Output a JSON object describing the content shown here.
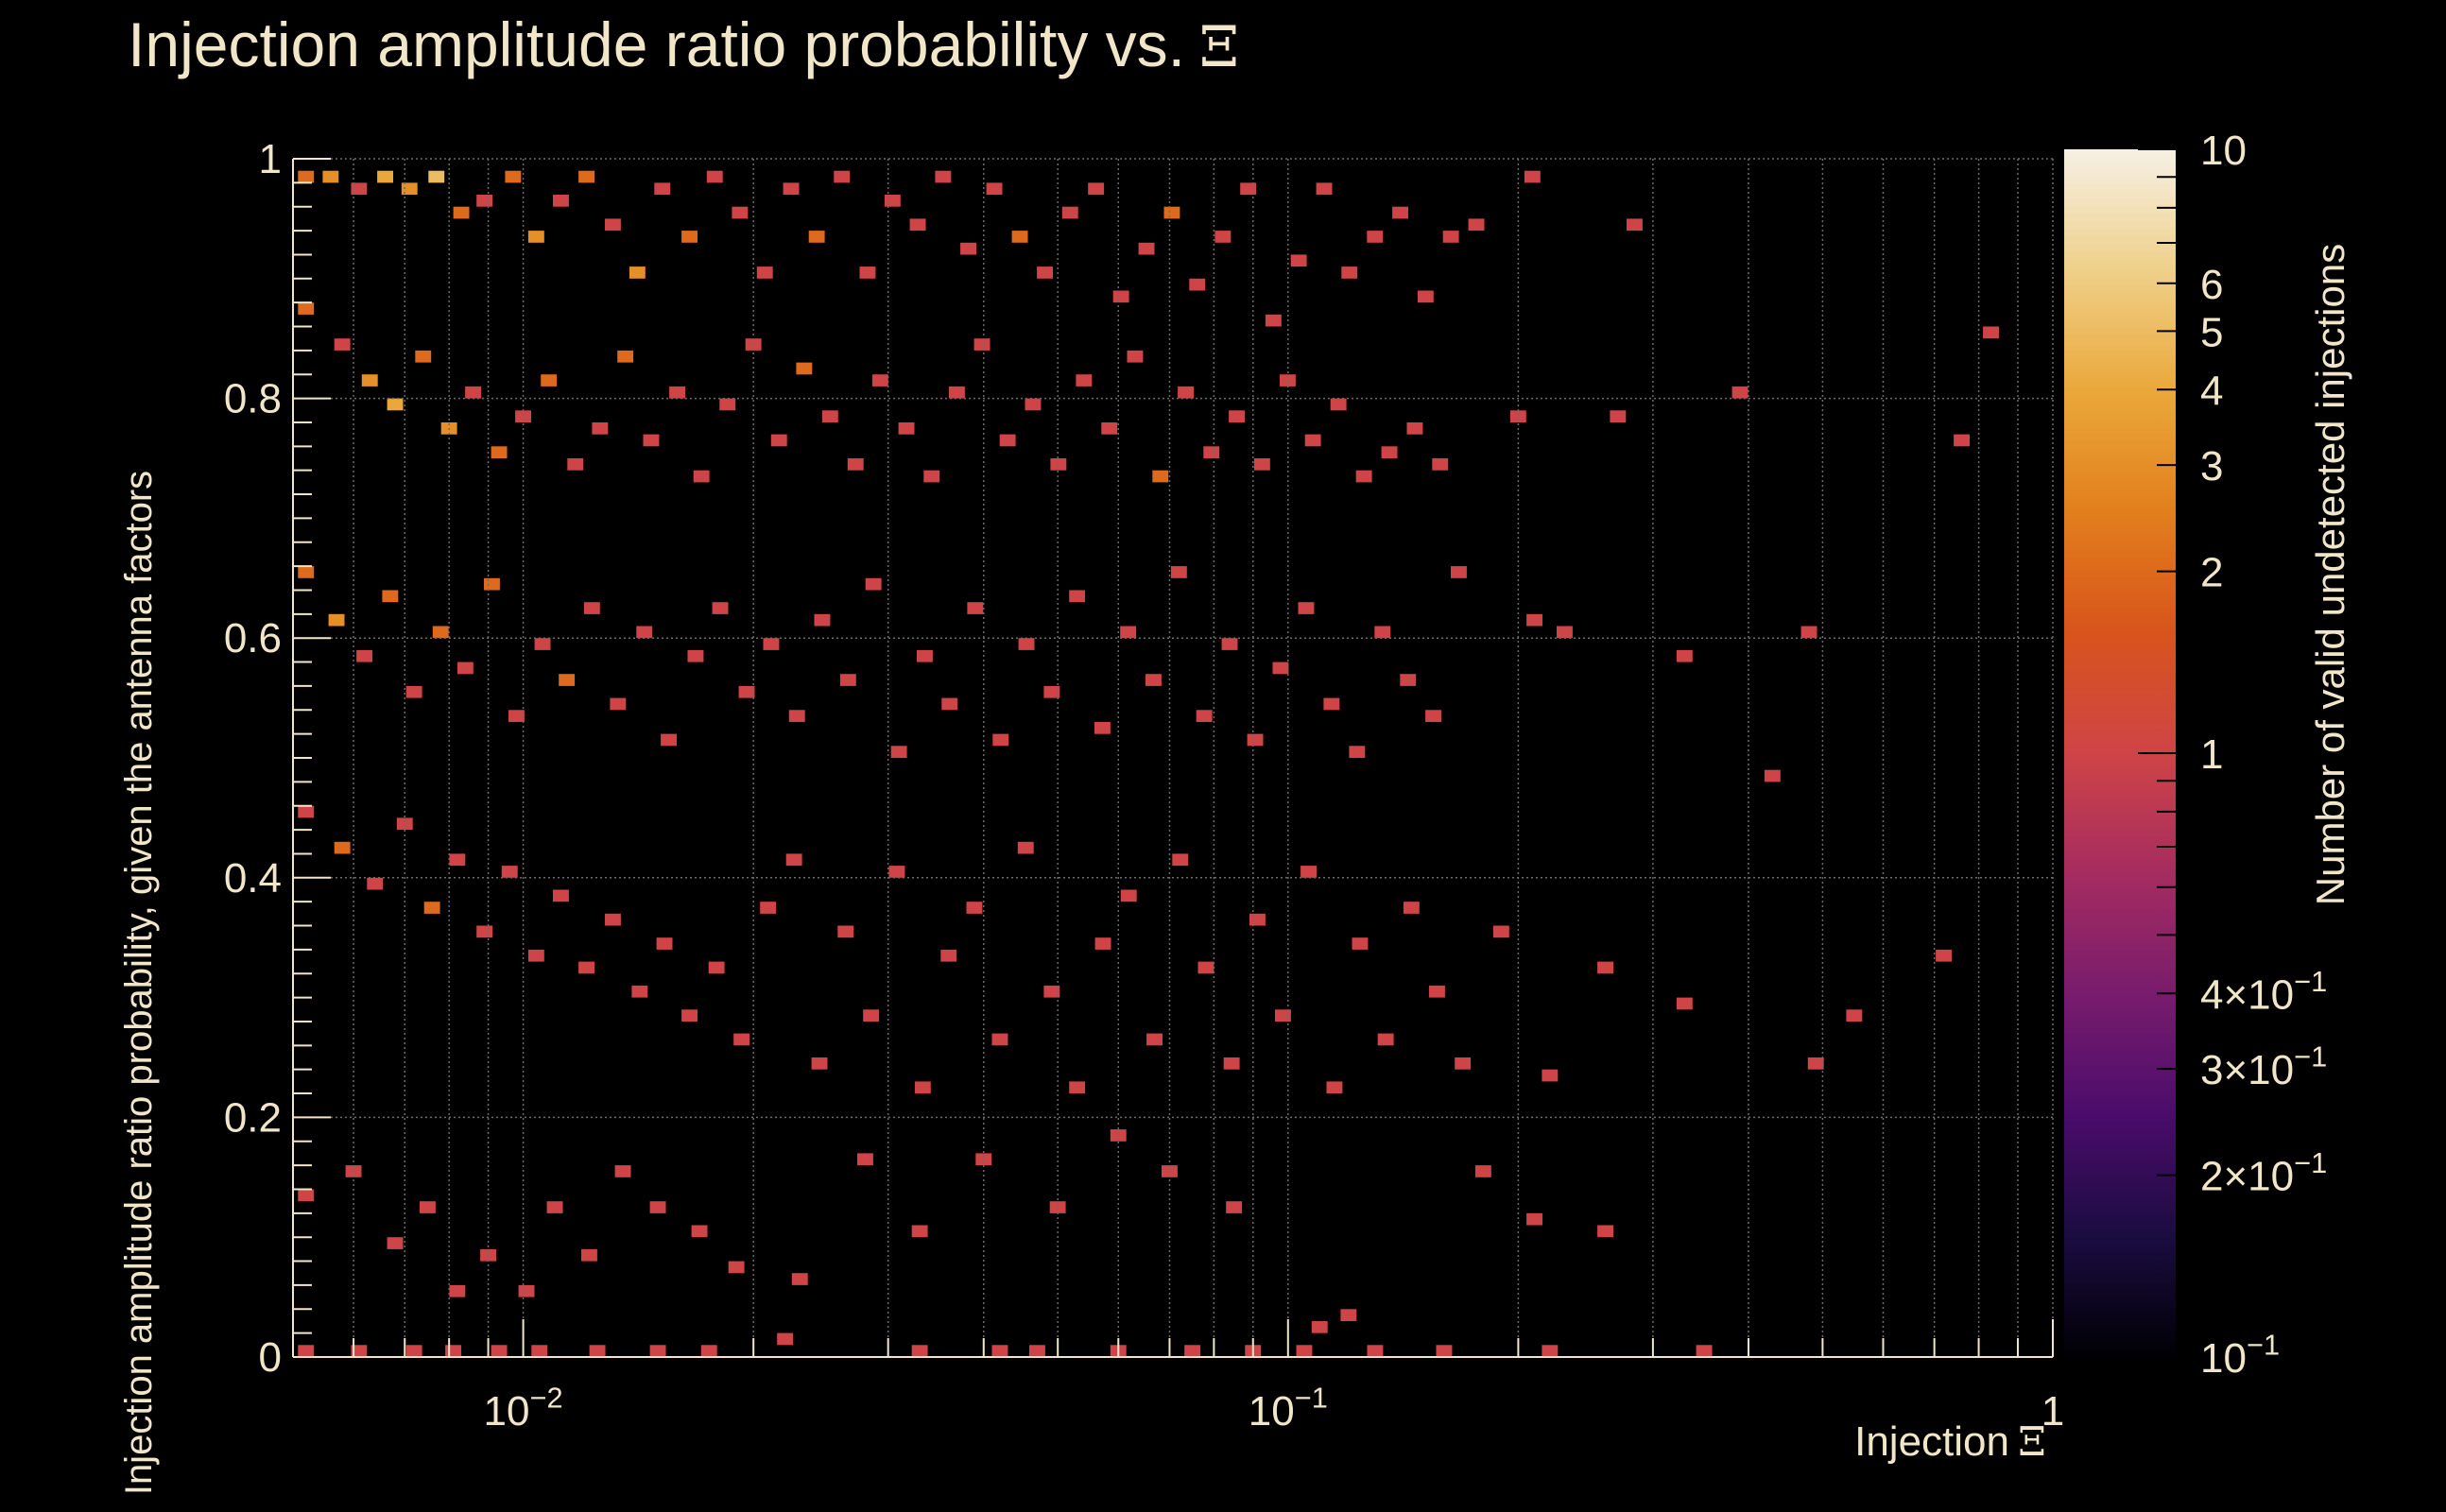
{
  "chart_data": {
    "type": "heatmap",
    "title": "Injection amplitude ratio probability vs.",
    "title_symbol": "Ξ",
    "xlabel": "Injection",
    "xlabel_symbol": "Ξ",
    "ylabel": "Injection amplitude ratio probability, given the antenna factors",
    "colorbar_label": "Number of valid undetected injections",
    "x_scale": "log",
    "xlim": [
      0.005,
      1
    ],
    "ylim": [
      0,
      1
    ],
    "x_ticks": [
      {
        "value": 0.01,
        "base": "10",
        "exp": "−2"
      },
      {
        "value": 0.1,
        "base": "10",
        "exp": "−1"
      },
      {
        "value": 1,
        "base": "1",
        "exp": ""
      }
    ],
    "y_ticks": [
      {
        "value": 0,
        "label": "0"
      },
      {
        "value": 0.2,
        "label": "0.2"
      },
      {
        "value": 0.4,
        "label": "0.4"
      },
      {
        "value": 0.6,
        "label": "0.6"
      },
      {
        "value": 0.8,
        "label": "0.8"
      },
      {
        "value": 1,
        "label": "1"
      }
    ],
    "z_scale": "log",
    "zlim": [
      0.1,
      10
    ],
    "z_ticks": [
      {
        "value": 10,
        "base": "10",
        "exp": ""
      },
      {
        "value": 6,
        "base": "6",
        "exp": ""
      },
      {
        "value": 5,
        "base": "5",
        "exp": ""
      },
      {
        "value": 4,
        "base": "4",
        "exp": ""
      },
      {
        "value": 3,
        "base": "3",
        "exp": ""
      },
      {
        "value": 2,
        "base": "2",
        "exp": ""
      },
      {
        "value": 1,
        "base": "1",
        "exp": ""
      },
      {
        "value": 0.4,
        "base": "4×10",
        "exp": "−1"
      },
      {
        "value": 0.3,
        "base": "3×10",
        "exp": "−1"
      },
      {
        "value": 0.2,
        "base": "2×10",
        "exp": "−1"
      },
      {
        "value": 0.1,
        "base": "10",
        "exp": "−1"
      }
    ],
    "colormap": [
      "#000004",
      "#1b0c41",
      "#4a0c6b",
      "#781c6d",
      "#a52c60",
      "#cf4446",
      "#d8541c",
      "#e27f1d",
      "#eaa83a",
      "#efd08a",
      "#f6f0e4"
    ],
    "grid": true,
    "bins": {
      "x_bins": 110,
      "y_bins": 100,
      "note_values": "sparse counts of undetected injections per bin",
      "cells": [
        [
          0.0052,
          0.985,
          2
        ],
        [
          0.0056,
          0.985,
          3
        ],
        [
          0.0061,
          0.975,
          1
        ],
        [
          0.0066,
          0.985,
          4
        ],
        [
          0.0071,
          0.975,
          3
        ],
        [
          0.0077,
          0.985,
          5
        ],
        [
          0.0083,
          0.955,
          2
        ],
        [
          0.0089,
          0.965,
          1
        ],
        [
          0.0097,
          0.985,
          2
        ],
        [
          0.0104,
          0.935,
          3
        ],
        [
          0.0112,
          0.965,
          1
        ],
        [
          0.0121,
          0.985,
          2
        ],
        [
          0.0131,
          0.945,
          1
        ],
        [
          0.0141,
          0.905,
          3
        ],
        [
          0.0152,
          0.975,
          1
        ],
        [
          0.0165,
          0.935,
          2
        ],
        [
          0.0178,
          0.985,
          1
        ],
        [
          0.0192,
          0.955,
          1
        ],
        [
          0.0207,
          0.905,
          1
        ],
        [
          0.0224,
          0.975,
          1
        ],
        [
          0.0242,
          0.935,
          2
        ],
        [
          0.0261,
          0.985,
          1
        ],
        [
          0.0282,
          0.905,
          1
        ],
        [
          0.0304,
          0.965,
          1
        ],
        [
          0.0328,
          0.945,
          1
        ],
        [
          0.0354,
          0.985,
          1
        ],
        [
          0.0382,
          0.925,
          1
        ],
        [
          0.0413,
          0.975,
          1
        ],
        [
          0.0446,
          0.935,
          2
        ],
        [
          0.0481,
          0.905,
          1
        ],
        [
          0.0519,
          0.955,
          1
        ],
        [
          0.0561,
          0.975,
          1
        ],
        [
          0.0605,
          0.885,
          1
        ],
        [
          0.0653,
          0.925,
          1
        ],
        [
          0.0705,
          0.955,
          2
        ],
        [
          0.0761,
          0.895,
          1
        ],
        [
          0.0822,
          0.935,
          1
        ],
        [
          0.0887,
          0.975,
          1
        ],
        [
          0.0957,
          0.865,
          1
        ],
        [
          0.1033,
          0.915,
          1
        ],
        [
          0.1115,
          0.975,
          1
        ],
        [
          0.1203,
          0.905,
          1
        ],
        [
          0.1299,
          0.935,
          1
        ],
        [
          0.1402,
          0.955,
          1
        ],
        [
          0.1513,
          0.885,
          1
        ],
        [
          0.1633,
          0.935,
          1
        ],
        [
          0.1763,
          0.945,
          1
        ],
        [
          0.2087,
          0.985,
          1
        ],
        [
          0.2839,
          0.945,
          1
        ],
        [
          0.0052,
          0.875,
          2
        ],
        [
          0.0058,
          0.845,
          1
        ],
        [
          0.0063,
          0.815,
          3
        ],
        [
          0.0068,
          0.795,
          4
        ],
        [
          0.0074,
          0.835,
          2
        ],
        [
          0.008,
          0.775,
          3
        ],
        [
          0.0086,
          0.805,
          1
        ],
        [
          0.0093,
          0.755,
          2
        ],
        [
          0.01,
          0.785,
          1
        ],
        [
          0.0108,
          0.815,
          2
        ],
        [
          0.0117,
          0.745,
          1
        ],
        [
          0.0126,
          0.775,
          1
        ],
        [
          0.0136,
          0.835,
          2
        ],
        [
          0.0147,
          0.765,
          1
        ],
        [
          0.0159,
          0.805,
          1
        ],
        [
          0.0171,
          0.735,
          1
        ],
        [
          0.0185,
          0.795,
          1
        ],
        [
          0.02,
          0.845,
          1
        ],
        [
          0.0216,
          0.765,
          1
        ],
        [
          0.0233,
          0.825,
          2
        ],
        [
          0.0252,
          0.785,
          1
        ],
        [
          0.0272,
          0.745,
          1
        ],
        [
          0.0293,
          0.815,
          1
        ],
        [
          0.0317,
          0.775,
          1
        ],
        [
          0.0342,
          0.735,
          1
        ],
        [
          0.0369,
          0.805,
          1
        ],
        [
          0.0398,
          0.845,
          1
        ],
        [
          0.043,
          0.765,
          1
        ],
        [
          0.0464,
          0.795,
          1
        ],
        [
          0.0501,
          0.745,
          1
        ],
        [
          0.0541,
          0.815,
          1
        ],
        [
          0.0584,
          0.775,
          1
        ],
        [
          0.0631,
          0.835,
          1
        ],
        [
          0.0681,
          0.735,
          2
        ],
        [
          0.0735,
          0.805,
          1
        ],
        [
          0.0794,
          0.755,
          1
        ],
        [
          0.0857,
          0.785,
          1
        ],
        [
          0.0925,
          0.745,
          1
        ],
        [
          0.0999,
          0.815,
          1
        ],
        [
          0.1078,
          0.765,
          1
        ],
        [
          0.1164,
          0.795,
          1
        ],
        [
          0.1257,
          0.735,
          1
        ],
        [
          0.1357,
          0.755,
          1
        ],
        [
          0.1465,
          0.775,
          1
        ],
        [
          0.1581,
          0.745,
          1
        ],
        [
          0.2,
          0.785,
          1
        ],
        [
          0.27,
          0.785,
          1
        ],
        [
          0.39,
          0.805,
          1
        ],
        [
          0.76,
          0.765,
          1
        ],
        [
          0.83,
          0.855,
          1
        ],
        [
          0.0052,
          0.655,
          2
        ],
        [
          0.0057,
          0.615,
          3
        ],
        [
          0.0062,
          0.585,
          1
        ],
        [
          0.0067,
          0.635,
          2
        ],
        [
          0.0072,
          0.555,
          1
        ],
        [
          0.0078,
          0.605,
          2
        ],
        [
          0.0084,
          0.575,
          1
        ],
        [
          0.0091,
          0.645,
          2
        ],
        [
          0.0098,
          0.535,
          1
        ],
        [
          0.0106,
          0.595,
          1
        ],
        [
          0.0114,
          0.565,
          2
        ],
        [
          0.0123,
          0.625,
          1
        ],
        [
          0.0133,
          0.545,
          1
        ],
        [
          0.0144,
          0.605,
          1
        ],
        [
          0.0155,
          0.515,
          1
        ],
        [
          0.0168,
          0.585,
          1
        ],
        [
          0.0181,
          0.625,
          1
        ],
        [
          0.0196,
          0.555,
          1
        ],
        [
          0.0211,
          0.595,
          1
        ],
        [
          0.0228,
          0.535,
          1
        ],
        [
          0.0246,
          0.615,
          1
        ],
        [
          0.0266,
          0.565,
          1
        ],
        [
          0.0287,
          0.645,
          1
        ],
        [
          0.031,
          0.505,
          1
        ],
        [
          0.0335,
          0.585,
          1
        ],
        [
          0.0361,
          0.545,
          1
        ],
        [
          0.039,
          0.625,
          1
        ],
        [
          0.0421,
          0.515,
          1
        ],
        [
          0.0455,
          0.595,
          1
        ],
        [
          0.0491,
          0.555,
          1
        ],
        [
          0.053,
          0.635,
          1
        ],
        [
          0.0572,
          0.525,
          1
        ],
        [
          0.0618,
          0.605,
          1
        ],
        [
          0.0667,
          0.565,
          1
        ],
        [
          0.072,
          0.655,
          1
        ],
        [
          0.0777,
          0.535,
          1
        ],
        [
          0.0839,
          0.595,
          1
        ],
        [
          0.0906,
          0.515,
          1
        ],
        [
          0.0978,
          0.575,
          1
        ],
        [
          0.1056,
          0.625,
          1
        ],
        [
          0.114,
          0.545,
          1
        ],
        [
          0.1231,
          0.505,
          1
        ],
        [
          0.1329,
          0.605,
          1
        ],
        [
          0.1435,
          0.565,
          1
        ],
        [
          0.1549,
          0.535,
          1
        ],
        [
          0.1672,
          0.655,
          1
        ],
        [
          0.21,
          0.615,
          1
        ],
        [
          0.23,
          0.605,
          1
        ],
        [
          0.33,
          0.585,
          1
        ],
        [
          0.48,
          0.605,
          1
        ],
        [
          0.0052,
          0.455,
          1
        ],
        [
          0.0058,
          0.425,
          2
        ],
        [
          0.0064,
          0.395,
          1
        ],
        [
          0.007,
          0.445,
          1
        ],
        [
          0.0076,
          0.375,
          2
        ],
        [
          0.0082,
          0.415,
          1
        ],
        [
          0.0089,
          0.355,
          1
        ],
        [
          0.0096,
          0.405,
          1
        ],
        [
          0.0104,
          0.335,
          1
        ],
        [
          0.0112,
          0.385,
          1
        ],
        [
          0.0121,
          0.325,
          1
        ],
        [
          0.0131,
          0.365,
          1
        ],
        [
          0.0142,
          0.305,
          1
        ],
        [
          0.0153,
          0.345,
          1
        ],
        [
          0.0165,
          0.285,
          1
        ],
        [
          0.0179,
          0.325,
          1
        ],
        [
          0.0193,
          0.265,
          1
        ],
        [
          0.0209,
          0.375,
          1
        ],
        [
          0.0226,
          0.415,
          1
        ],
        [
          0.0244,
          0.245,
          1
        ],
        [
          0.0264,
          0.355,
          1
        ],
        [
          0.0285,
          0.285,
          1
        ],
        [
          0.0308,
          0.405,
          1
        ],
        [
          0.0333,
          0.225,
          1
        ],
        [
          0.036,
          0.335,
          1
        ],
        [
          0.0389,
          0.375,
          1
        ],
        [
          0.042,
          0.265,
          1
        ],
        [
          0.0454,
          0.425,
          1
        ],
        [
          0.0491,
          0.305,
          1
        ],
        [
          0.053,
          0.225,
          1
        ],
        [
          0.0573,
          0.345,
          1
        ],
        [
          0.0619,
          0.385,
          1
        ],
        [
          0.0669,
          0.265,
          1
        ],
        [
          0.0723,
          0.415,
          1
        ],
        [
          0.0781,
          0.325,
          1
        ],
        [
          0.0844,
          0.245,
          1
        ],
        [
          0.0912,
          0.365,
          1
        ],
        [
          0.0985,
          0.285,
          1
        ],
        [
          0.1064,
          0.405,
          1
        ],
        [
          0.115,
          0.225,
          1
        ],
        [
          0.1242,
          0.345,
          1
        ],
        [
          0.1342,
          0.265,
          1
        ],
        [
          0.145,
          0.375,
          1
        ],
        [
          0.1566,
          0.305,
          1
        ],
        [
          0.1692,
          0.245,
          1
        ],
        [
          0.19,
          0.355,
          1
        ],
        [
          0.22,
          0.235,
          1
        ],
        [
          0.26,
          0.325,
          1
        ],
        [
          0.33,
          0.295,
          1
        ],
        [
          0.55,
          0.285,
          1
        ],
        [
          0.72,
          0.335,
          1
        ],
        [
          0.49,
          0.245,
          1
        ],
        [
          0.43,
          0.485,
          1
        ],
        [
          0.0052,
          0.135,
          1
        ],
        [
          0.006,
          0.155,
          1
        ],
        [
          0.0068,
          0.095,
          1
        ],
        [
          0.0075,
          0.125,
          1
        ],
        [
          0.0082,
          0.055,
          1
        ],
        [
          0.009,
          0.085,
          1
        ],
        [
          0.0101,
          0.055,
          1
        ],
        [
          0.011,
          0.125,
          1
        ],
        [
          0.0122,
          0.085,
          1
        ],
        [
          0.0135,
          0.155,
          1
        ],
        [
          0.015,
          0.125,
          1
        ],
        [
          0.017,
          0.105,
          1
        ],
        [
          0.019,
          0.075,
          1
        ],
        [
          0.023,
          0.065,
          1
        ],
        [
          0.028,
          0.165,
          1
        ],
        [
          0.033,
          0.105,
          1
        ],
        [
          0.04,
          0.165,
          1
        ],
        [
          0.05,
          0.125,
          1
        ],
        [
          0.06,
          0.185,
          1
        ],
        [
          0.07,
          0.155,
          1
        ],
        [
          0.085,
          0.125,
          1
        ],
        [
          0.11,
          0.025,
          1
        ],
        [
          0.12,
          0.035,
          1
        ],
        [
          0.18,
          0.155,
          1
        ],
        [
          0.21,
          0.115,
          1
        ],
        [
          0.26,
          0.105,
          1
        ],
        [
          0.0052,
          0.005,
          1
        ],
        [
          0.0061,
          0.005,
          1
        ],
        [
          0.0072,
          0.005,
          1
        ],
        [
          0.0081,
          0.005,
          1
        ],
        [
          0.0093,
          0.005,
          1
        ],
        [
          0.0105,
          0.005,
          1
        ],
        [
          0.0125,
          0.005,
          1
        ],
        [
          0.015,
          0.005,
          1
        ],
        [
          0.0175,
          0.005,
          1
        ],
        [
          0.022,
          0.015,
          1
        ],
        [
          0.033,
          0.005,
          1
        ],
        [
          0.042,
          0.005,
          1
        ],
        [
          0.047,
          0.005,
          1
        ],
        [
          0.06,
          0.005,
          1
        ],
        [
          0.075,
          0.005,
          1
        ],
        [
          0.09,
          0.005,
          1
        ],
        [
          0.105,
          0.005,
          1
        ],
        [
          0.13,
          0.005,
          1
        ],
        [
          0.16,
          0.005,
          1
        ],
        [
          0.22,
          0.005,
          1
        ],
        [
          0.35,
          0.005,
          1
        ]
      ]
    }
  }
}
